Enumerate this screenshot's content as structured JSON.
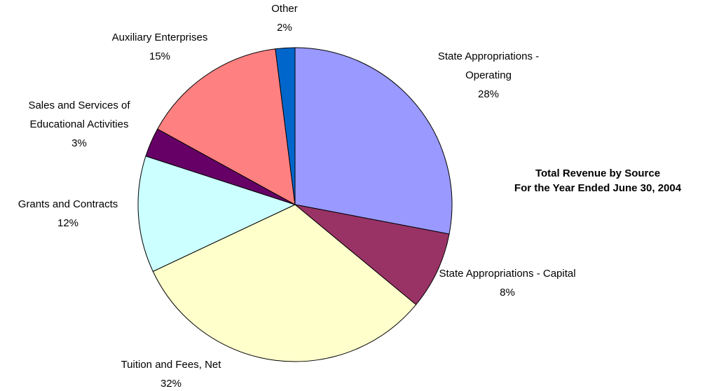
{
  "chart_data": {
    "type": "pie",
    "title": "Total Revenue by Source",
    "subtitle": "For the Year Ended June 30, 2004",
    "categories": [
      "State Appropriations - Operating",
      "State Appropriations - Capital",
      "Tuition and Fees, Net",
      "Grants and Contracts",
      "Sales and Services of Educational Activities",
      "Auxiliary Enterprises",
      "Other"
    ],
    "values": [
      28,
      8,
      32,
      12,
      3,
      15,
      2
    ],
    "value_labels": [
      "28%",
      "8%",
      "32%",
      "12%",
      "3%",
      "15%",
      "2%"
    ],
    "colors": [
      "#9999ff",
      "#993366",
      "#ffffcc",
      "#ccffff",
      "#660066",
      "#ff8080",
      "#0066cc"
    ]
  }
}
